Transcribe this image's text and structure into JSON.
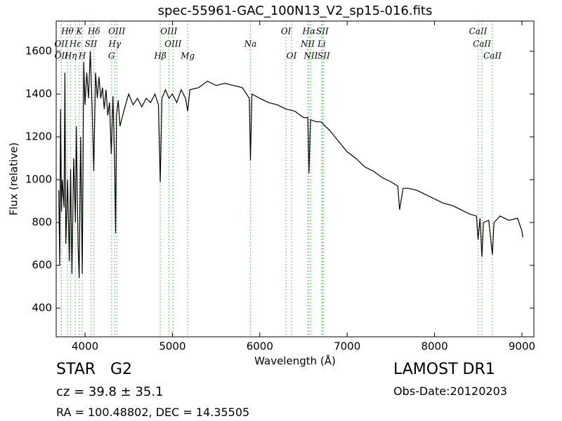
{
  "chart_data": {
    "type": "line",
    "title": "spec-55961-GAC_100N13_V2_sp15-016.fits",
    "x_label": "Wavelength (Å)",
    "y_label": "Flux (relative)",
    "xlim": [
      3670,
      9137
    ],
    "ylim": [
      266,
      1741
    ],
    "xticks": [
      4000,
      5000,
      6000,
      7000,
      8000,
      9000
    ],
    "yticks": [
      400,
      600,
      800,
      1000,
      1200,
      1400,
      1600
    ],
    "color": "#000000",
    "line_color": "#66bb66",
    "x": [
      3700,
      3710,
      3720,
      3730,
      3740,
      3760,
      3770,
      3780,
      3800,
      3820,
      3835,
      3850,
      3870,
      3890,
      3900,
      3920,
      3933,
      3950,
      3968,
      3985,
      4000,
      4020,
      4040,
      4060,
      4080,
      4100,
      4120,
      4140,
      4160,
      4180,
      4200,
      4220,
      4240,
      4260,
      4280,
      4300,
      4320,
      4340,
      4350,
      4360,
      4380,
      4400,
      4450,
      4500,
      4550,
      4600,
      4650,
      4700,
      4750,
      4800,
      4840,
      4861,
      4880,
      4920,
      4960,
      5000,
      5050,
      5100,
      5150,
      5175,
      5200,
      5300,
      5400,
      5500,
      5600,
      5700,
      5800,
      5880,
      5893,
      5910,
      6000,
      6100,
      6200,
      6300,
      6400,
      6500,
      6550,
      6563,
      6580,
      6650,
      6700,
      6800,
      6900,
      7000,
      7100,
      7200,
      7300,
      7400,
      7500,
      7580,
      7600,
      7640,
      7700,
      7800,
      7900,
      8000,
      8100,
      8200,
      8300,
      8400,
      8480,
      8498,
      8520,
      8542,
      8560,
      8620,
      8662,
      8680,
      8750,
      8850,
      8950,
      9000,
      9010
    ],
    "values": [
      950,
      600,
      1330,
      850,
      1000,
      870,
      1500,
      700,
      1000,
      620,
      1050,
      560,
      1100,
      800,
      1250,
      700,
      540,
      1200,
      560,
      1550,
      1350,
      1500,
      1380,
      1600,
      1350,
      1040,
      1500,
      1380,
      1480,
      1380,
      1430,
      1330,
      1420,
      1300,
      1360,
      1120,
      1390,
      1050,
      750,
      1300,
      1370,
      1250,
      1330,
      1400,
      1350,
      1380,
      1340,
      1380,
      1360,
      1400,
      1350,
      990,
      1380,
      1420,
      1380,
      1400,
      1360,
      1420,
      1380,
      1320,
      1420,
      1430,
      1460,
      1440,
      1450,
      1440,
      1430,
      1380,
      1090,
      1400,
      1380,
      1360,
      1350,
      1330,
      1320,
      1290,
      1290,
      1030,
      1280,
      1270,
      1270,
      1230,
      1180,
      1130,
      1100,
      1060,
      1040,
      1010,
      990,
      970,
      860,
      960,
      960,
      950,
      930,
      910,
      890,
      880,
      860,
      840,
      830,
      720,
      820,
      640,
      800,
      810,
      650,
      800,
      830,
      810,
      820,
      760,
      730
    ],
    "annotation_rows": [
      [
        {
          "label": "Hθ",
          "x": 3798
        },
        {
          "label": "K",
          "x": 3934
        },
        {
          "label": "Hδ",
          "x": 4102
        },
        {
          "label": "OIII",
          "x": 4363
        },
        {
          "label": "OIII",
          "x": 4959
        },
        {
          "label": "OI",
          "x": 6300
        },
        {
          "label": "Hα",
          "x": 6563
        },
        {
          "label": "SII",
          "x": 6716
        },
        {
          "label": "CaII",
          "x": 8498
        }
      ],
      [
        {
          "label": "OII",
          "x": 3727
        },
        {
          "label": "Hε",
          "x": 3889
        },
        {
          "label": "SII",
          "x": 4068
        },
        {
          "label": "Hγ",
          "x": 4340
        },
        {
          "label": "OIII",
          "x": 5007
        },
        {
          "label": "Na",
          "x": 5893
        },
        {
          "label": "NII",
          "x": 6548
        },
        {
          "label": "Li",
          "x": 6708
        },
        {
          "label": "CaII",
          "x": 8542
        }
      ],
      [
        {
          "label": "OII",
          "x": 3729
        },
        {
          "label": "Hη",
          "x": 3835
        },
        {
          "label": "H",
          "x": 3968
        },
        {
          "label": "G",
          "x": 4304
        },
        {
          "label": "Hβ",
          "x": 4861
        },
        {
          "label": "Mg",
          "x": 5175
        },
        {
          "label": "OI",
          "x": 6364
        },
        {
          "label": "NII",
          "x": 6583
        },
        {
          "label": "SII",
          "x": 6731
        },
        {
          "label": "CaII",
          "x": 8662
        }
      ]
    ],
    "object": "STAR   G2",
    "redshift": "cz = 39.8 ± 35.1",
    "coords": "RA = 100.48802, DEC = 14.35505",
    "survey": "LAMOST DR1",
    "obs_date": "Obs-Date:20120203"
  }
}
